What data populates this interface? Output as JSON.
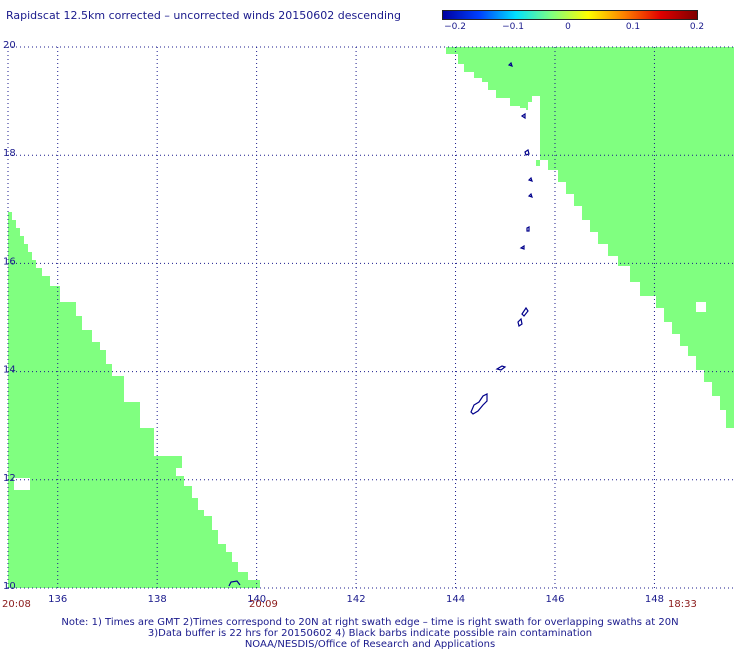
{
  "title": "Rapidscat 12.5km corrected – uncorrected winds 20150602 descending",
  "colorbar": {
    "labels": [
      "−0.2",
      "−0.1",
      "0",
      "0.1",
      "0.2"
    ],
    "colors": [
      "#0000a0",
      "#0040ff",
      "#00e0ff",
      "#80ff80",
      "#ffff00",
      "#ff8000",
      "#e00000",
      "#800000"
    ]
  },
  "axes": {
    "x_ticks": [
      "136",
      "138",
      "140",
      "142",
      "144",
      "146",
      "148"
    ],
    "y_ticks": [
      "20",
      "18",
      "16",
      "14",
      "12",
      "10"
    ],
    "x_range": [
      135,
      149.6
    ],
    "y_range": [
      10,
      20
    ]
  },
  "swath_color": "#80ff80",
  "land_color": "#00008b",
  "times": {
    "left": "20:08",
    "middle": "20:09",
    "right": "18:33"
  },
  "notes": {
    "line1": "Note: 1) Times are GMT 2)Times correspond to 20N at right swath edge – time is right swath for overlapping swaths at 20N",
    "line2": "3)Data buffer is 22 hrs for 20150602 4) Black barbs indicate possible rain contamination",
    "line3": "NOAA/NESDIS/Office of Research and Applications"
  }
}
